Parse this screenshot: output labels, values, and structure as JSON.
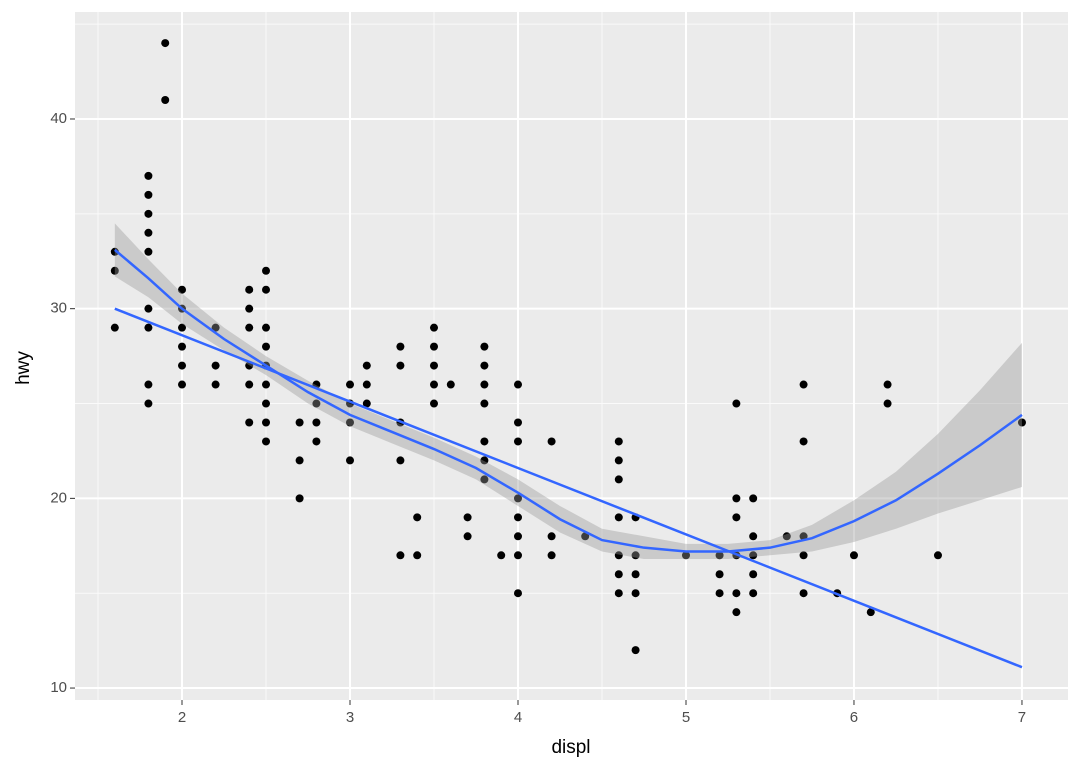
{
  "chart_data": {
    "type": "scatter",
    "x_label": "displ",
    "y_label": "hwy",
    "xlim": [
      1.363,
      7.274
    ],
    "ylim": [
      9.37,
      45.64
    ],
    "xticks": [
      2,
      3,
      4,
      5,
      6,
      7
    ],
    "yticks": [
      10,
      20,
      30,
      40
    ],
    "xminor": [
      1.5,
      2.5,
      3.5,
      4.5,
      5.5,
      6.5
    ],
    "yminor": [
      15,
      25,
      35,
      45
    ],
    "grid": true,
    "panel_color": "#ebebeb",
    "points": {
      "color": "#000000",
      "x": [
        1.6,
        1.6,
        1.6,
        1.8,
        1.8,
        1.8,
        1.8,
        1.8,
        1.8,
        1.8,
        1.8,
        1.8,
        1.9,
        1.9,
        2.0,
        2.0,
        2.0,
        2.0,
        2.0,
        2.0,
        2.2,
        2.2,
        2.2,
        2.4,
        2.4,
        2.4,
        2.4,
        2.4,
        2.4,
        2.5,
        2.5,
        2.5,
        2.5,
        2.5,
        2.5,
        2.5,
        2.5,
        2.5,
        2.7,
        2.7,
        2.7,
        2.8,
        2.8,
        2.8,
        2.8,
        3.0,
        3.0,
        3.0,
        3.0,
        3.1,
        3.1,
        3.1,
        3.3,
        3.3,
        3.3,
        3.3,
        3.3,
        3.4,
        3.4,
        3.5,
        3.5,
        3.5,
        3.5,
        3.5,
        3.6,
        3.7,
        3.7,
        3.8,
        3.8,
        3.8,
        3.8,
        3.8,
        3.8,
        3.8,
        3.9,
        4.0,
        4.0,
        4.0,
        4.0,
        4.0,
        4.0,
        4.0,
        4.0,
        4.2,
        4.2,
        4.2,
        4.4,
        4.6,
        4.6,
        4.6,
        4.6,
        4.6,
        4.6,
        4.6,
        4.7,
        4.7,
        4.7,
        4.7,
        4.7,
        5.0,
        5.2,
        5.2,
        5.2,
        5.3,
        5.3,
        5.3,
        5.3,
        5.3,
        5.3,
        5.4,
        5.4,
        5.4,
        5.4,
        5.4,
        5.6,
        5.7,
        5.7,
        5.7,
        5.7,
        5.7,
        5.9,
        6.0,
        6.1,
        6.2,
        6.2,
        6.5,
        7.0
      ],
      "y": [
        33,
        32,
        29,
        37,
        36,
        35,
        34,
        33,
        30,
        29,
        26,
        25,
        44,
        41,
        31,
        30,
        29,
        28,
        27,
        26,
        29,
        27,
        26,
        31,
        30,
        29,
        27,
        26,
        24,
        32,
        31,
        29,
        28,
        27,
        26,
        25,
        24,
        23,
        24,
        22,
        20,
        26,
        25,
        24,
        23,
        26,
        25,
        24,
        22,
        27,
        26,
        25,
        28,
        27,
        24,
        22,
        17,
        19,
        17,
        29,
        28,
        27,
        26,
        25,
        26,
        19,
        18,
        28,
        27,
        26,
        25,
        23,
        22,
        21,
        17,
        26,
        24,
        23,
        20,
        19,
        18,
        17,
        15,
        23,
        18,
        17,
        18,
        23,
        22,
        21,
        19,
        17,
        16,
        15,
        19,
        17,
        16,
        15,
        12,
        17,
        17,
        16,
        15,
        25,
        20,
        19,
        17,
        15,
        14,
        20,
        18,
        17,
        16,
        15,
        18,
        26,
        23,
        18,
        17,
        15,
        15,
        17,
        14,
        26,
        25,
        17,
        24
      ]
    },
    "fit_line": {
      "color": "#3366ff",
      "x": [
        1.6,
        7.0
      ],
      "y": [
        30.0,
        11.1
      ]
    },
    "smooth": {
      "color": "#3366ff",
      "band_color": "#999999",
      "x": [
        1.6,
        1.8,
        2.0,
        2.25,
        2.5,
        2.75,
        3.0,
        3.25,
        3.5,
        3.75,
        4.0,
        4.25,
        4.5,
        4.75,
        5.0,
        5.25,
        5.5,
        5.75,
        6.0,
        6.25,
        6.5,
        6.75,
        7.0
      ],
      "y": [
        33.1,
        31.6,
        30.0,
        28.4,
        27.0,
        25.6,
        24.4,
        23.5,
        22.6,
        21.6,
        20.3,
        18.9,
        17.8,
        17.4,
        17.2,
        17.2,
        17.4,
        17.9,
        18.8,
        19.9,
        21.3,
        22.8,
        24.4
      ],
      "ymin": [
        31.7,
        30.6,
        29.2,
        27.8,
        26.5,
        25.0,
        23.8,
        22.9,
        22.0,
        21.0,
        19.6,
        18.2,
        17.2,
        16.8,
        16.8,
        16.8,
        17.0,
        17.2,
        17.7,
        18.4,
        19.2,
        19.9,
        20.6
      ],
      "ymax": [
        34.5,
        32.6,
        30.8,
        29.0,
        27.5,
        26.2,
        25.0,
        24.1,
        23.2,
        22.2,
        21.0,
        19.6,
        18.4,
        18.0,
        17.6,
        17.6,
        17.8,
        18.6,
        19.9,
        21.4,
        23.4,
        25.7,
        28.2
      ]
    }
  }
}
